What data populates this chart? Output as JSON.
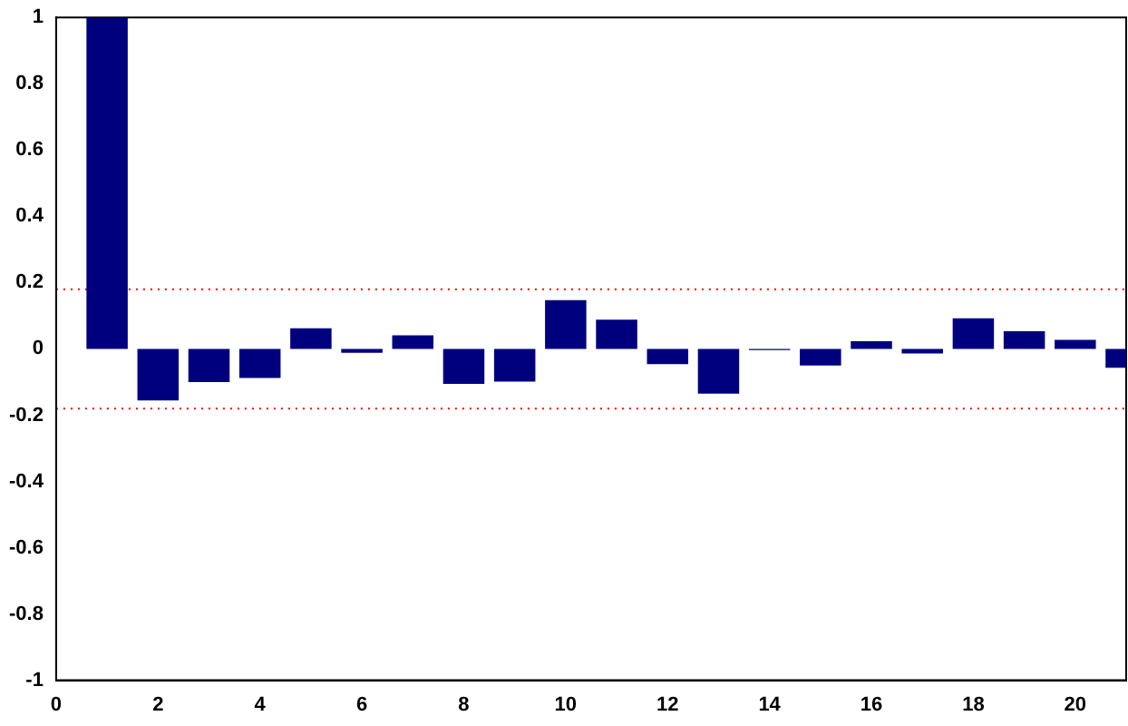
{
  "chart_data": {
    "type": "bar",
    "x": [
      1,
      2,
      3,
      4,
      5,
      6,
      7,
      8,
      9,
      10,
      11,
      12,
      13,
      14,
      15,
      16,
      17,
      18,
      19,
      20,
      21
    ],
    "values": [
      1,
      -0.156,
      -0.1,
      -0.088,
      0.062,
      -0.012,
      0.041,
      -0.106,
      -0.099,
      0.147,
      0.088,
      -0.046,
      -0.135,
      -0.004,
      -0.05,
      0.023,
      -0.014,
      0.092,
      0.053,
      0.027,
      -0.057
    ],
    "color": "#00007f",
    "xlim": [
      0,
      21
    ],
    "xticks": [
      0,
      2,
      4,
      6,
      8,
      10,
      12,
      14,
      16,
      18,
      20
    ],
    "ylim": [
      -1,
      1
    ],
    "yticks": [
      -1,
      -0.8,
      -0.6,
      -0.4,
      -0.2,
      0,
      0.2,
      0.4,
      0.6,
      0.8,
      1
    ],
    "grid": false,
    "legend": false,
    "ref_lines": [
      {
        "axis": "y",
        "value": 0.18,
        "color": "#ff0000",
        "line_style": "dotted"
      },
      {
        "axis": "y",
        "value": -0.18,
        "color": "#ff0000",
        "line_style": "dotted"
      }
    ]
  }
}
